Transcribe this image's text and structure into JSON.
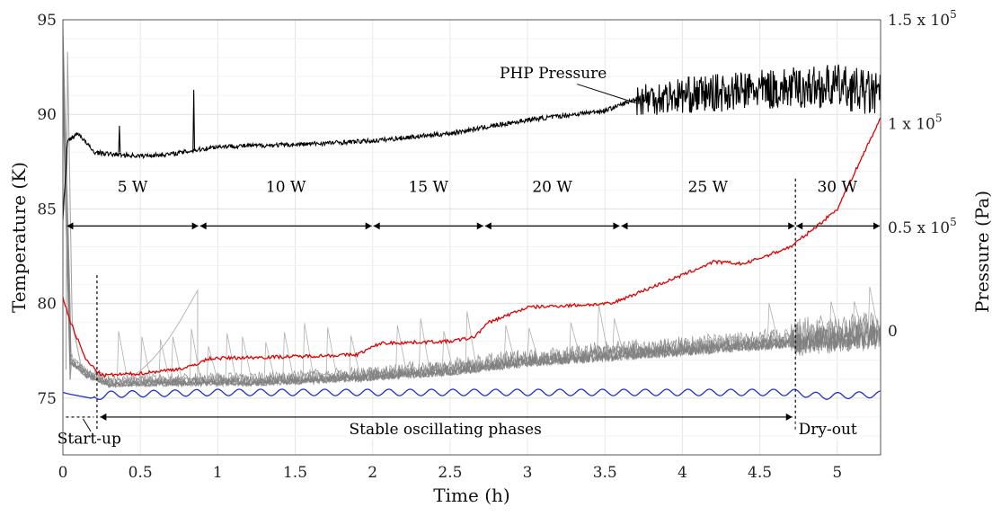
{
  "chart_data": {
    "type": "line",
    "xlabel": "Time (h)",
    "ylabel_left": "Temperature (K)",
    "ylabel_right": "Pressure (Pa)",
    "xlim": [
      0,
      5.28
    ],
    "ylim_left": [
      72,
      95
    ],
    "x_ticks": [
      0,
      0.5,
      1,
      1.5,
      2,
      2.5,
      3,
      3.5,
      4,
      4.5,
      5
    ],
    "x_tick_labels": [
      "0",
      "0.5",
      "1",
      "1.5",
      "2",
      "2.5",
      "3",
      "3.5",
      "4",
      "4.5",
      "5"
    ],
    "y_ticks_left": [
      75,
      80,
      85,
      90,
      95
    ],
    "y_tick_labels_left": [
      "75",
      "80",
      "85",
      "90",
      "95"
    ],
    "y_ticks_right": [
      {
        "value": 0,
        "label": "0",
        "exp": ""
      },
      {
        "value": 0.5,
        "label": "0.5 x 10",
        "exp": "5"
      },
      {
        "value": 1.0,
        "label": "1 x 10",
        "exp": "5"
      },
      {
        "value": 1.5,
        "label": "1.5 x 10",
        "exp": "5"
      }
    ],
    "grid": true,
    "series": [
      {
        "name": "PHP Pressure",
        "color": "#000000",
        "x": [
          0,
          0.03,
          0.1,
          0.2,
          0.3,
          0.5,
          0.7,
          0.85,
          1.0,
          1.5,
          2.0,
          2.5,
          3.0,
          3.5,
          3.7,
          4.0,
          4.5,
          5.0,
          5.28
        ],
        "y": [
          84.5,
          88.6,
          89.0,
          88.0,
          87.9,
          87.8,
          87.9,
          88.1,
          88.3,
          88.4,
          88.6,
          89.0,
          89.7,
          90.2,
          90.8,
          91.0,
          91.3,
          91.5,
          91.0
        ]
      },
      {
        "color": "#e00000",
        "x": [
          0,
          0.05,
          0.15,
          0.25,
          0.5,
          0.8,
          0.95,
          1.5,
          1.9,
          2.05,
          2.5,
          2.65,
          2.75,
          3.0,
          3.55,
          3.6,
          4.0,
          4.2,
          4.4,
          4.7,
          4.9,
          5.0,
          5.28
        ],
        "y": [
          80.3,
          79.0,
          77.0,
          76.2,
          76.3,
          76.6,
          77.1,
          77.2,
          77.3,
          77.9,
          78.0,
          78.2,
          79.0,
          79.8,
          80.0,
          80.2,
          81.5,
          82.2,
          82.1,
          83.0,
          84.3,
          85.0,
          89.8
        ]
      },
      {
        "color": "#1f2fd0",
        "x": [
          0,
          0.05,
          0.18,
          0.3,
          1.0,
          2.0,
          3.0,
          4.0,
          4.72,
          4.9,
          5.28
        ],
        "y": [
          75.3,
          75.2,
          75.0,
          75.2,
          75.3,
          75.3,
          75.3,
          75.3,
          75.3,
          75.1,
          75.2
        ]
      },
      {
        "color": "#808080",
        "x": [
          0,
          0.05,
          0.15,
          0.3,
          0.8,
          1.2,
          1.8,
          2.5,
          3.0,
          3.5,
          4.0,
          4.5,
          5.0,
          5.28
        ],
        "y": [
          93.0,
          77.0,
          76.3,
          75.8,
          75.9,
          75.9,
          76.1,
          76.5,
          77.0,
          77.3,
          77.6,
          77.9,
          78.2,
          78.4
        ]
      }
    ],
    "annotations": {
      "php_pressure": "PHP Pressure",
      "phases": [
        "5 W",
        "10 W",
        "15 W",
        "20 W",
        "25 W",
        "30 W"
      ],
      "phase_boundaries": [
        0.02,
        0.88,
        2.0,
        2.72,
        3.6,
        4.73,
        5.28
      ],
      "startup_label": "Start-up",
      "stable_label": "Stable oscillating phases",
      "dryout_label": "Dry-out",
      "vline_startup": 0.22,
      "vline_dryout": 4.73
    }
  }
}
